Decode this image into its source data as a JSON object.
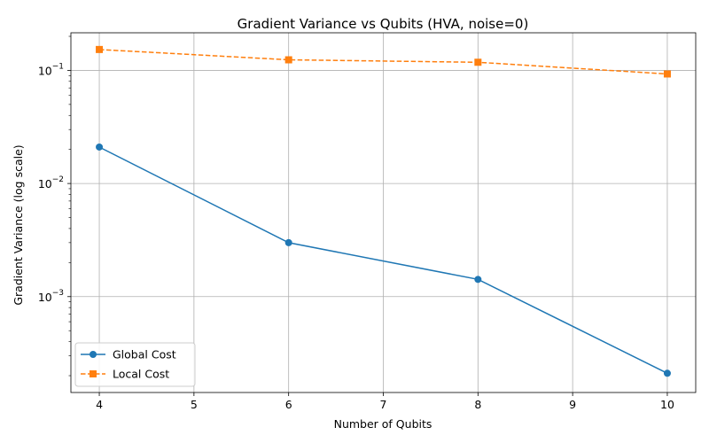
{
  "chart_data": {
    "type": "line",
    "title": "Gradient Variance vs Qubits (HVA, noise=0)",
    "xlabel": "Number of Qubits",
    "ylabel": "Gradient Variance (log scale)",
    "xlim": [
      3.7,
      10.3
    ],
    "ylim": [
      0.000142,
      0.215
    ],
    "yscale": "log",
    "x_ticks": [
      4,
      5,
      6,
      7,
      8,
      9,
      10
    ],
    "y_ticks": [
      {
        "value": 0.001,
        "base": "10",
        "exp": "−3"
      },
      {
        "value": 0.01,
        "base": "10",
        "exp": "−2"
      },
      {
        "value": 0.1,
        "base": "10",
        "exp": "−1"
      }
    ],
    "grid": true,
    "legend_position": "lower-left",
    "x": [
      4,
      6,
      8,
      10
    ],
    "series": [
      {
        "name": "Global Cost",
        "values": [
          0.021,
          0.003,
          0.00142,
          0.00021
        ],
        "color": "#1f77b4",
        "marker": "circle",
        "linestyle": "solid"
      },
      {
        "name": "Local Cost",
        "values": [
          0.153,
          0.124,
          0.118,
          0.093
        ],
        "color": "#ff7f0e",
        "marker": "square",
        "linestyle": "dashed"
      }
    ]
  }
}
